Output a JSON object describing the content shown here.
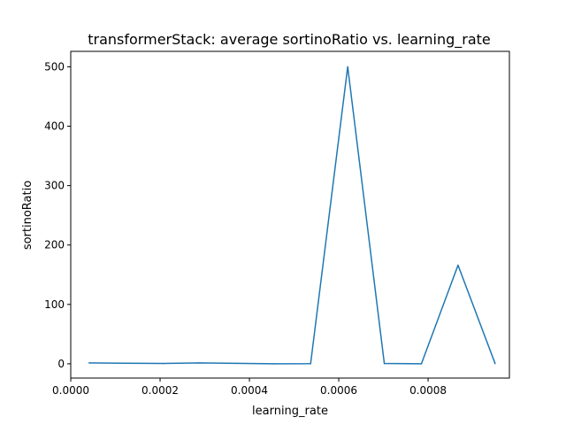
{
  "chart_data": {
    "type": "line",
    "title": "transformerStack: average sortinoRatio vs. learning_rate",
    "xlabel": "learning_rate",
    "ylabel": "sortinoRatio",
    "xlim": [
      0.0,
      0.000982
    ],
    "ylim": [
      -24,
      526
    ],
    "x_ticks": [
      0.0,
      0.0002,
      0.0004,
      0.0006,
      0.0008
    ],
    "x_tick_labels": [
      "0.0000",
      "0.0002",
      "0.0004",
      "0.0006",
      "0.0008"
    ],
    "y_ticks": [
      0,
      100,
      200,
      300,
      400,
      500
    ],
    "y_tick_labels": [
      "0",
      "100",
      "200",
      "300",
      "400",
      "500"
    ],
    "grid": false,
    "series": [
      {
        "color": "#1f77b4",
        "x": [
          4.1e-05,
          0.000124,
          0.000207,
          0.000289,
          0.000372,
          0.000455,
          0.000537,
          0.00062,
          0.000702,
          0.000785,
          0.000867,
          0.00095
        ],
        "y": [
          1.5,
          1.0,
          0.5,
          1.5,
          0.8,
          0.0,
          0.2,
          500,
          0.5,
          0.0,
          166,
          0.5
        ]
      }
    ]
  }
}
